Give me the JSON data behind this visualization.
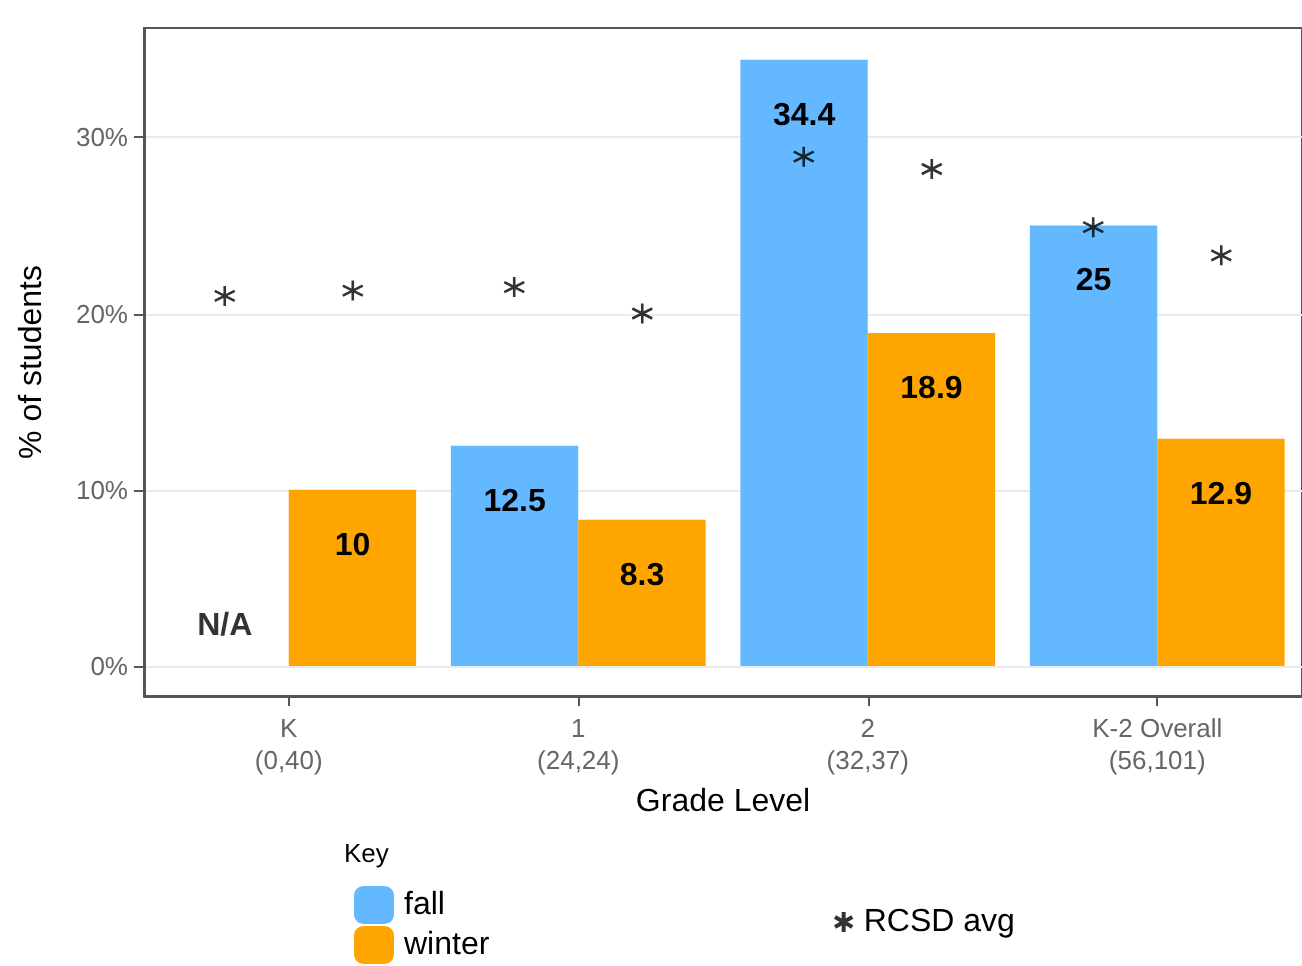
{
  "chart_data": {
    "type": "bar",
    "xlabel": "Grade Level",
    "ylabel": "% of students",
    "legend_title": "Key",
    "categories": [
      "K\n(0,40)",
      "1\n(24,24)",
      "2\n(32,37)",
      "K-2 Overall\n(56,101)"
    ],
    "series": [
      {
        "name": "fall",
        "color": "#63b8ff",
        "values": [
          null,
          12.5,
          34.4,
          25
        ],
        "value_labels": [
          null,
          "12.5",
          "34.4",
          "25"
        ]
      },
      {
        "name": "winter",
        "color": "#ffa500",
        "values": [
          10,
          8.3,
          18.9,
          12.9
        ],
        "value_labels": [
          "10",
          "8.3",
          "18.9",
          "12.9"
        ]
      },
      {
        "name": "RCSD avg",
        "type": "scatter",
        "marker": "cross",
        "color": "#000000",
        "values": [
          21.0,
          21.5,
          28.9,
          24.9
        ]
      },
      {
        "type": "scatter",
        "marker": "cross",
        "color": "#000000",
        "values": [
          21.3,
          20.0,
          28.2,
          23.3
        ]
      }
    ],
    "annotations": [
      {
        "text": "N/A",
        "x": "K\n(0,40)",
        "y": 0
      }
    ],
    "ylim": [
      -1.7,
      36.2
    ],
    "yticks": [
      {
        "value": 0,
        "label": "0%"
      },
      {
        "value": 10,
        "label": "10%"
      },
      {
        "value": 20,
        "label": "20%"
      },
      {
        "value": 30,
        "label": "30%"
      }
    ],
    "grid": "y",
    "legend": "bottom"
  }
}
